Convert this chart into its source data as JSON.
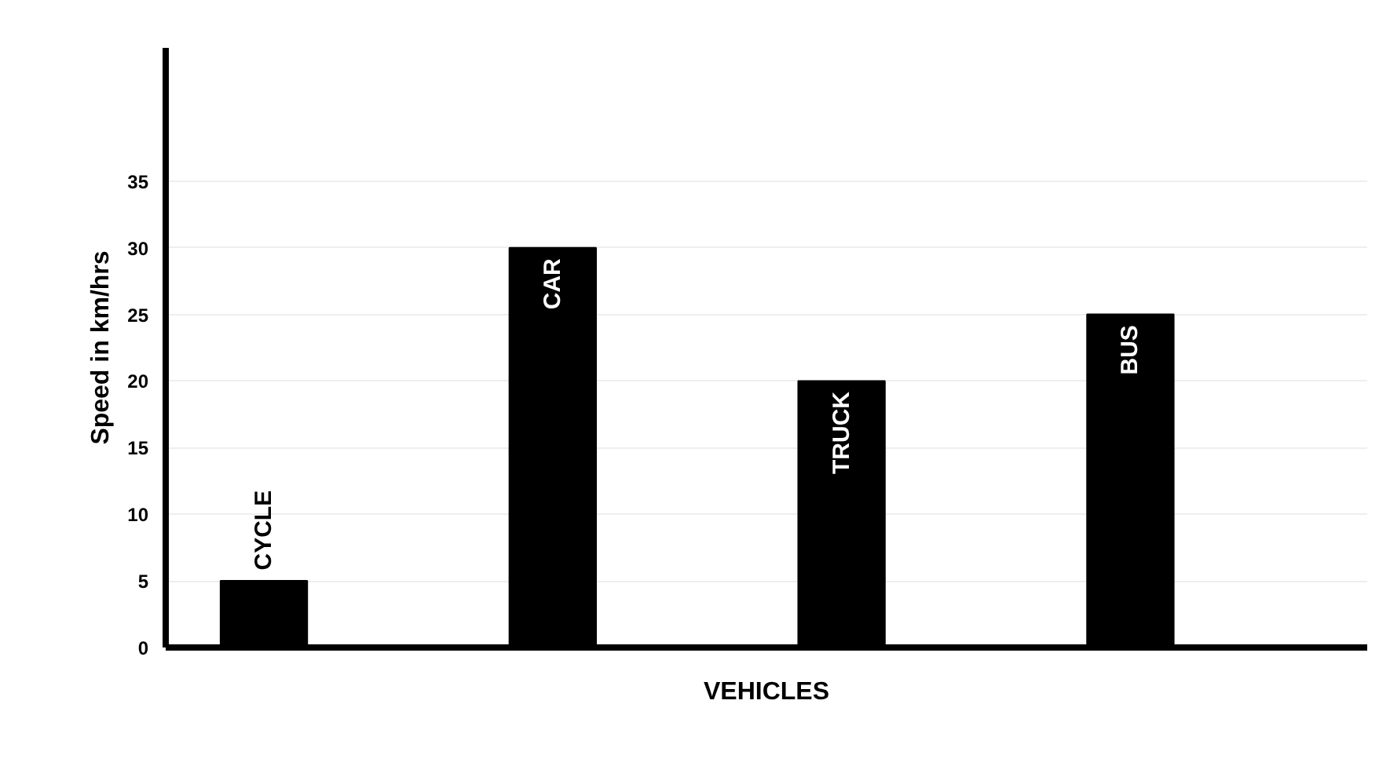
{
  "chart_data": {
    "type": "bar",
    "xlabel": "VEHICLES",
    "ylabel": "Speed in km/hrs",
    "categories": [
      "CYCLE",
      "CAR",
      "TRUCK",
      "BUS"
    ],
    "values": [
      5,
      30,
      20,
      25
    ],
    "color": "#000000",
    "ylim": [
      0,
      45
    ],
    "yticks": [
      0,
      5,
      10,
      15,
      20,
      25,
      30,
      35
    ],
    "grid": "y"
  }
}
